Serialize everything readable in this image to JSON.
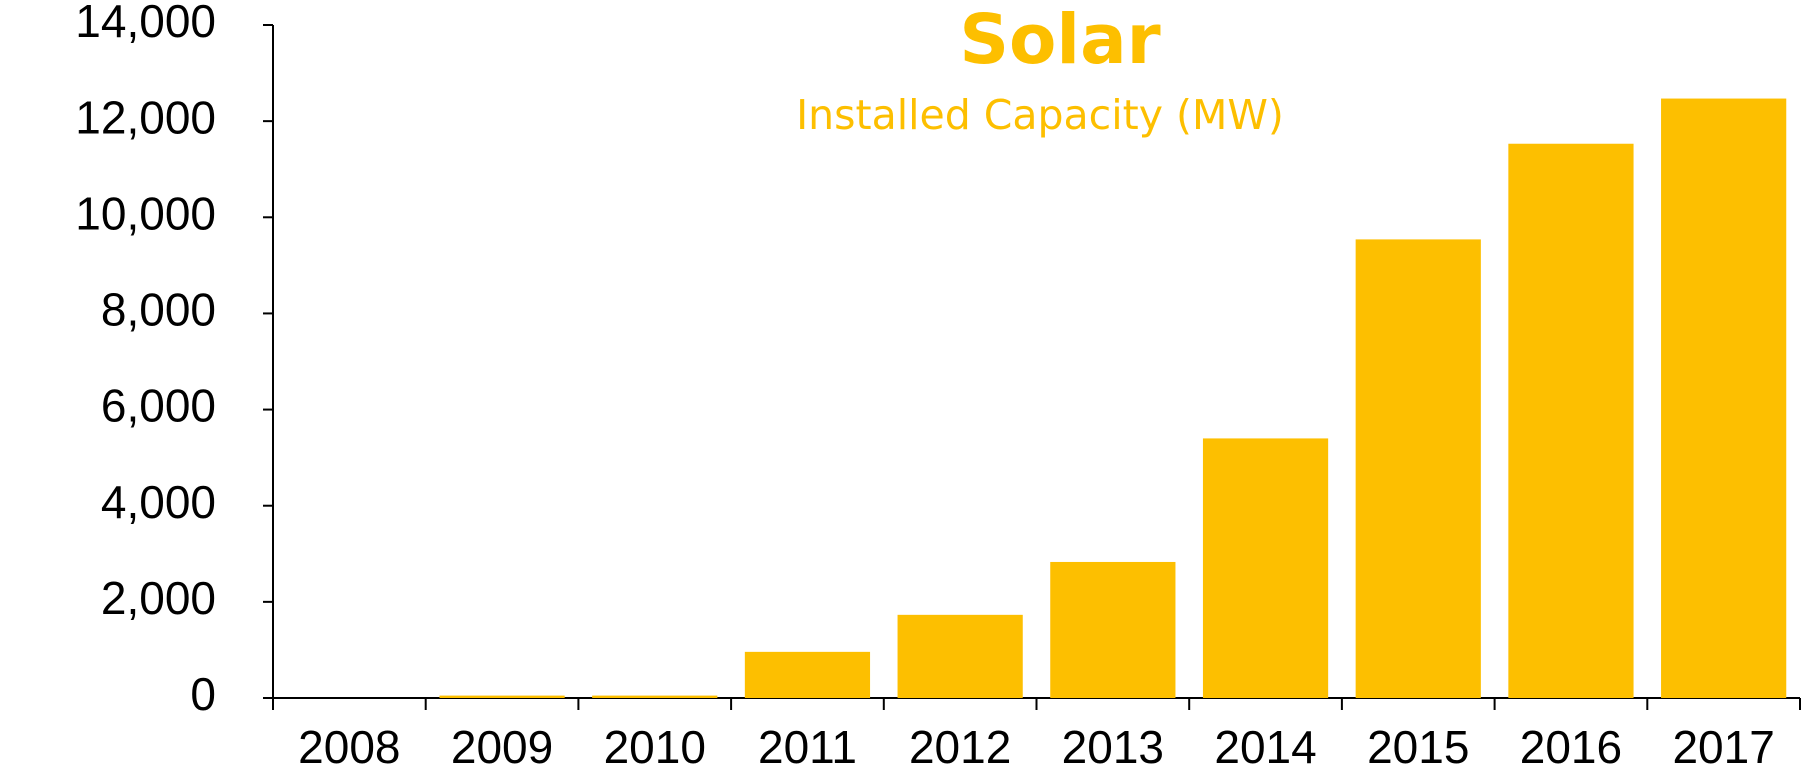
{
  "chart_data": {
    "type": "bar",
    "title": "Solar",
    "subtitle": "Installed Capacity (MW)",
    "categories": [
      "2008",
      "2009",
      "2010",
      "2011",
      "2012",
      "2013",
      "2014",
      "2015",
      "2016",
      "2017"
    ],
    "values": [
      0,
      50,
      50,
      960,
      1730,
      2830,
      5400,
      9540,
      11530,
      12470
    ],
    "color": "#fdbf00",
    "ylim": [
      0,
      14000
    ],
    "yticks": [
      0,
      {
        "value": 2000,
        "label": "2,000"
      },
      {
        "value": 4000,
        "label": "4,000"
      },
      {
        "value": 6000,
        "label": "6,000"
      },
      {
        "value": 8000,
        "label": "8,000"
      },
      {
        "value": 10000,
        "label": "10,000"
      },
      {
        "value": 12000,
        "label": "12,000"
      },
      {
        "value": 14000,
        "label": "14,000"
      }
    ],
    "grid": false
  }
}
